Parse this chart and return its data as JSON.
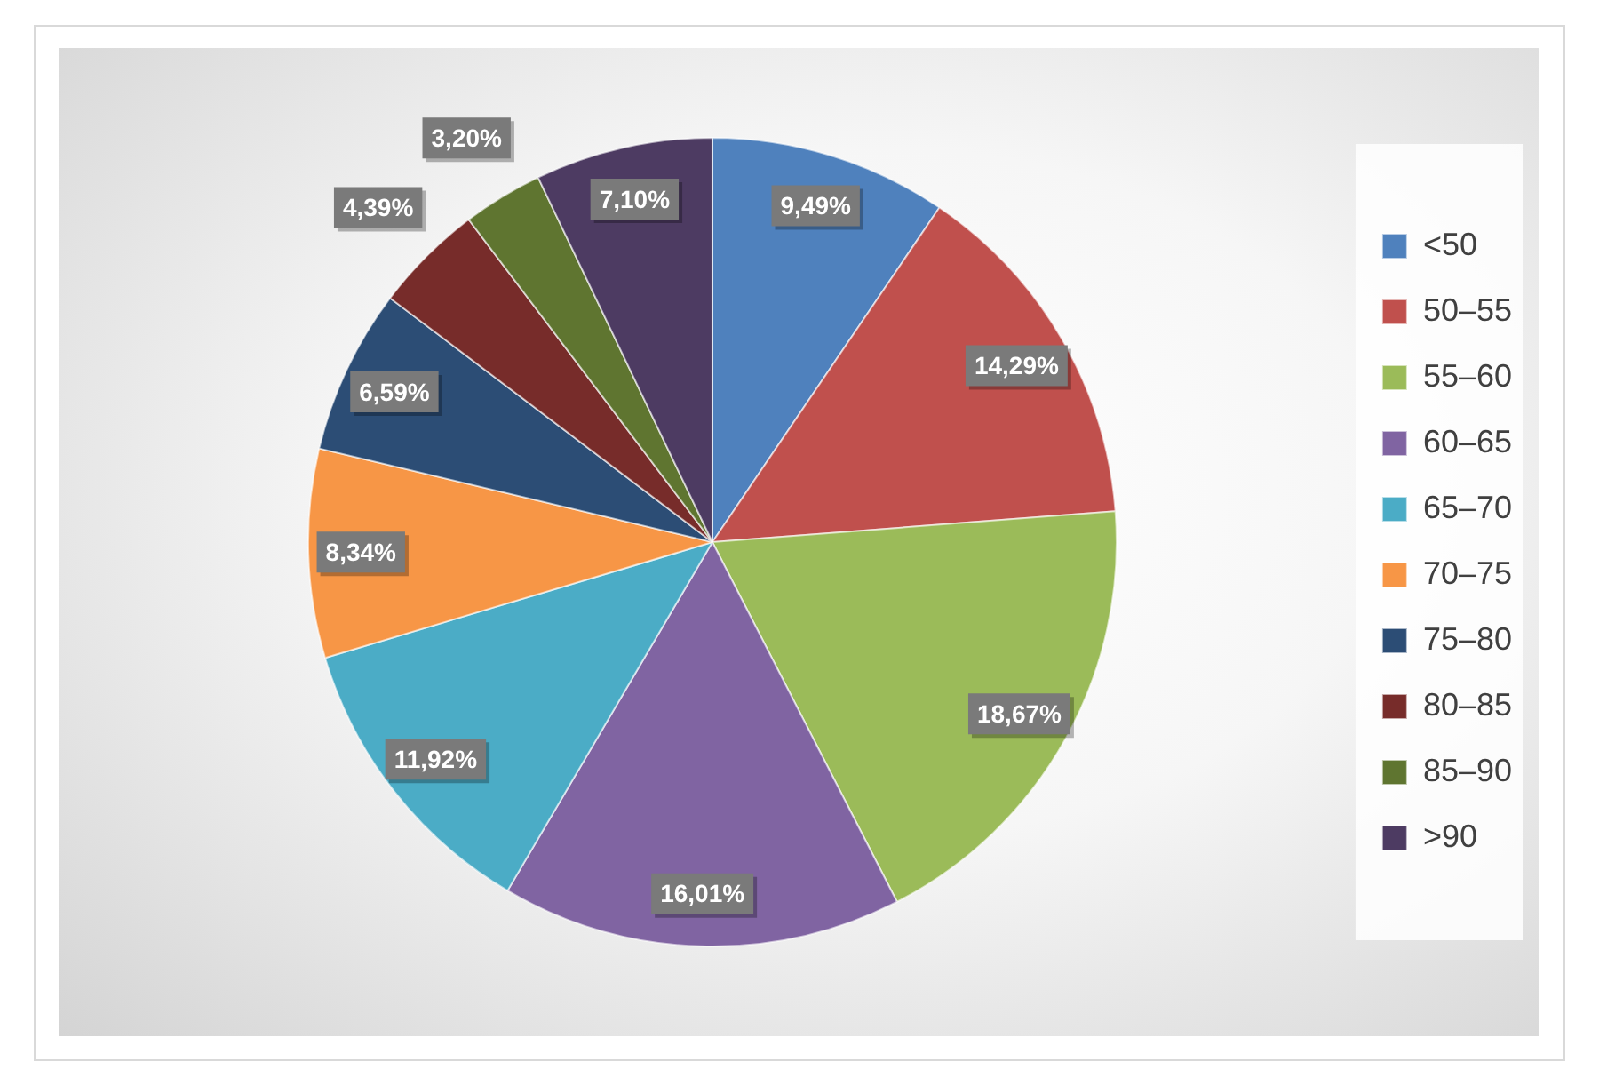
{
  "chart_data": {
    "type": "pie",
    "categories": [
      "<50",
      "50–55",
      "55–60",
      "60–65",
      "65–70",
      "70–75",
      "75–80",
      "80–85",
      "85–90",
      ">90"
    ],
    "values": [
      9.49,
      14.29,
      18.67,
      16.01,
      11.92,
      8.34,
      6.59,
      4.39,
      3.2,
      7.1
    ],
    "colors": [
      "#4f81bd",
      "#c0504d",
      "#9bbb59",
      "#8064a2",
      "#4bacc6",
      "#f79646",
      "#2c4d75",
      "#772c2a",
      "#5f7530",
      "#4d3b62"
    ],
    "value_labels": [
      "9,49%",
      "14,29%",
      "18,67%",
      "16,01%",
      "11,92%",
      "8,34%",
      "6,59%",
      "4,39%",
      "3,20%",
      "7,10%"
    ],
    "legend": "right"
  }
}
